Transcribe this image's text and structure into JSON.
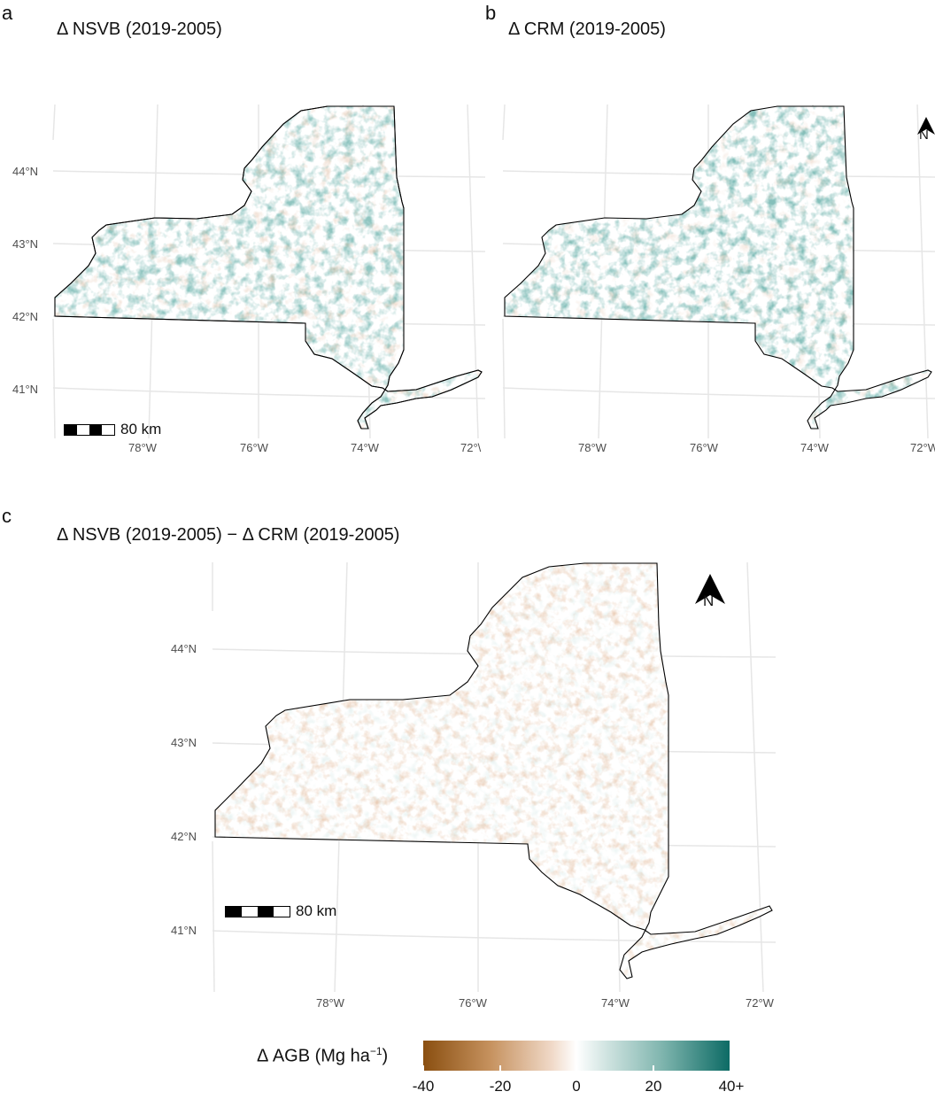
{
  "panels": [
    {
      "letter": "a",
      "title": "Δ NSVB (2019-2005)"
    },
    {
      "letter": "b",
      "title": "Δ CRM (2019-2005)"
    },
    {
      "letter": "c",
      "title": "Δ NSVB (2019-2005) − Δ CRM (2019-2005)"
    }
  ],
  "lat_labels": [
    "44°N",
    "43°N",
    "42°N",
    "41°N"
  ],
  "lon_labels": [
    "78°W",
    "76°W",
    "74°W",
    "72°W"
  ],
  "lon_labels_clipped": [
    "78°W",
    "76°W",
    "74°W",
    "72°\\"
  ],
  "scalebar_label": "80 km",
  "north_arrow_label": "N",
  "legend": {
    "title": "Δ AGB (Mg ha",
    "title_sup": "−1",
    "title_close": ")",
    "ticks": [
      "-40",
      "-20",
      "0",
      "20",
      "40+"
    ],
    "colors": {
      "low": "#8a4f10",
      "mid": "#ffffff",
      "high": "#0d6b65"
    }
  }
}
